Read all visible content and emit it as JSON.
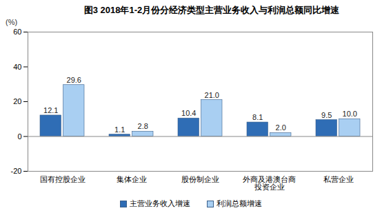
{
  "chart_data": {
    "type": "bar",
    "title": "图3 2018年1-2月份分经济类型主营业务收入与利润总额同比增速",
    "ylabel": "(%)",
    "categories": [
      "国有控股企业",
      "集体企业",
      "股份制企业",
      "外商及港澳台商\n投资企业",
      "私营企业"
    ],
    "series": [
      {
        "name": "主营业务收入增速",
        "color": "#2f6db5",
        "values": [
          12.1,
          1.1,
          10.4,
          8.1,
          9.5
        ]
      },
      {
        "name": "利润总额增速",
        "color": "#a9cff2",
        "values": [
          29.6,
          2.8,
          21.0,
          2.0,
          10.0
        ],
        "value_labels": [
          "29.6",
          "2.8",
          "21.0",
          "2.0",
          "10.0"
        ]
      }
    ],
    "ylim": [
      -20,
      60
    ],
    "yticks": [
      -20,
      0,
      20,
      40,
      60
    ],
    "grid": false,
    "data_labels": true,
    "legend": "bottom"
  }
}
